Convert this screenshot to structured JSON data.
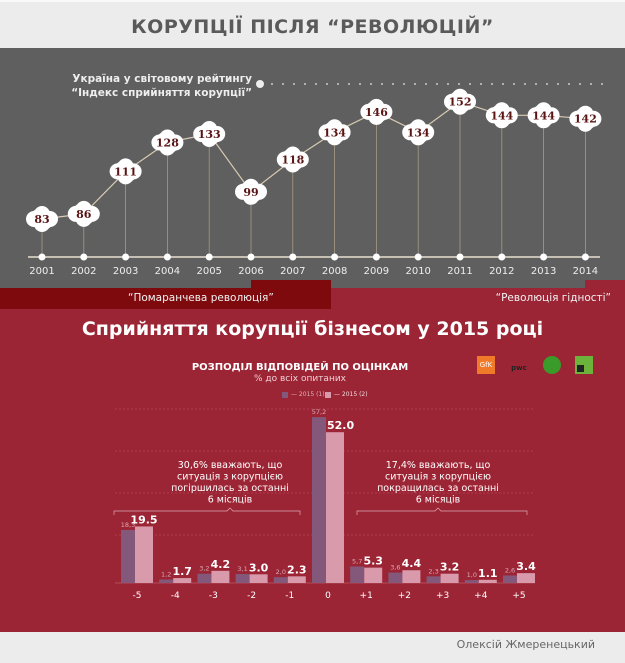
{
  "header": {
    "title": "КОРУПЦІЇ ПІСЛЯ “РЕВОЛЮЦІЙ”"
  },
  "ranking": {
    "label_line1": "Україна у світовому рейтингу",
    "label_line2": "“Індекс сприйняття корупції”",
    "chart_data": {
      "type": "line",
      "x": [
        "2001",
        "2002",
        "2003",
        "2004",
        "2005",
        "2006",
        "2007",
        "2008",
        "2009",
        "2010",
        "2011",
        "2012",
        "2013",
        "2014"
      ],
      "values": [
        83,
        86,
        111,
        128,
        133,
        99,
        118,
        134,
        146,
        134,
        152,
        144,
        144,
        142
      ]
    },
    "colors": {
      "bubble": "#ffffff",
      "bubble_text": "#5a1414",
      "line": "#d9cbb4"
    }
  },
  "banners": {
    "orange": "“Помаранчева революція”",
    "dignity": "“Революція гідності”"
  },
  "business": {
    "title": "Сприйняття корупції бізнесом у 2015 році",
    "logos": [
      "GfK",
      "pwc",
      "transparency-icon",
      "privatbank-icon"
    ],
    "chart_data": {
      "type": "bar",
      "title": "РОЗПОДІЛ ВІДПОВІДЕЙ ПО ОЦІНКАМ",
      "subtitle": "% до всіх опитаних",
      "categories": [
        "-5",
        "-4",
        "-3",
        "-2",
        "-1",
        "0",
        "+1",
        "+2",
        "+3",
        "+4",
        "+5"
      ],
      "series": [
        {
          "name": "— 2015 (1)",
          "color": "#83587a",
          "values": [
            18.3,
            1.2,
            3.2,
            3.1,
            2.0,
            57.2,
            5.7,
            3.6,
            2.3,
            1.0,
            2.6
          ],
          "labels": [
            "18,3",
            "1,2",
            "3,2",
            "3,1",
            "2,0",
            "57,2",
            "5,7",
            "3,6",
            "2,3",
            "1,0",
            "2,6"
          ]
        },
        {
          "name": "— 2015 (2)",
          "color": "#d99aab",
          "values": [
            19.5,
            1.7,
            4.2,
            3.0,
            2.3,
            52.0,
            5.3,
            4.4,
            3.2,
            1.1,
            3.4
          ],
          "labels": [
            "19.5",
            "1.7",
            "4.2",
            "3.0",
            "2.3",
            "52.0",
            "5.3",
            "4.4",
            "3.2",
            "1.1",
            "3.4"
          ]
        }
      ],
      "annotations": [
        {
          "text": [
            "30,6% вважають, що",
            "ситуація з корупцією",
            "погіршилась за останні",
            "6 місяців"
          ]
        },
        {
          "text": [
            "17,4% вважають, що",
            "ситуація з корупцією",
            "покращилась за останні",
            "6 місяців"
          ]
        }
      ]
    }
  },
  "footer": {
    "author": "Олексій Жмеренецький"
  }
}
